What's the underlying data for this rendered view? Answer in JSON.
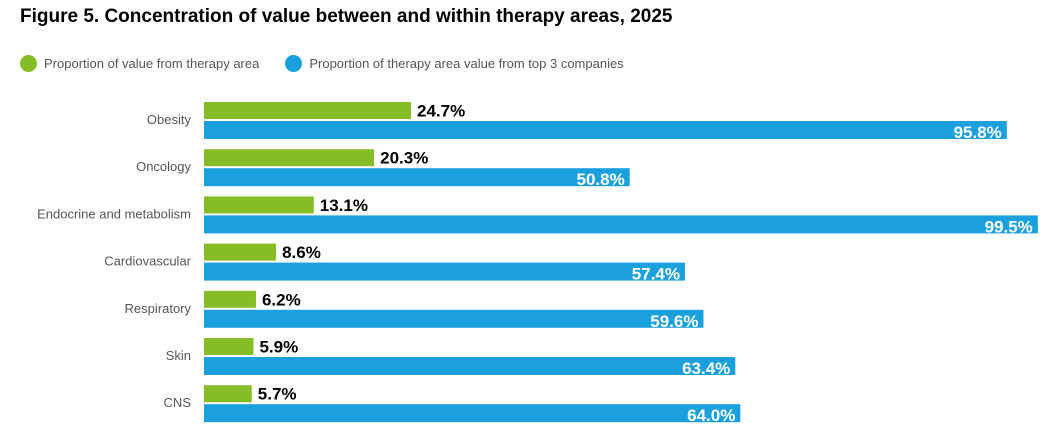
{
  "colors": {
    "green": "#86bc25",
    "blue": "#1aa0dd",
    "text": "#000000",
    "label": "#555555",
    "white": "#ffffff"
  },
  "chart_data": {
    "type": "bar",
    "orientation": "horizontal",
    "title": "Figure 5. Concentration of value between and within therapy areas, 2025",
    "categories": [
      "Obesity",
      "Oncology",
      "Endocrine and metabolism",
      "Cardiovascular",
      "Respiratory",
      "Skin",
      "CNS"
    ],
    "series": [
      {
        "name": "Proportion of value from therapy area",
        "color": "#86bc25",
        "values": [
          24.7,
          20.3,
          13.1,
          8.6,
          6.2,
          5.9,
          5.7
        ],
        "labels": [
          "24.7%",
          "20.3%",
          "13.1%",
          "8.6%",
          "6.2%",
          "5.9%",
          "5.7%"
        ]
      },
      {
        "name": "Proportion of therapy area value from top 3 companies",
        "color": "#1aa0dd",
        "values": [
          95.8,
          50.8,
          99.5,
          57.4,
          59.6,
          63.4,
          64.0
        ],
        "labels": [
          "95.8%",
          "50.8%",
          "99.5%",
          "57.4%",
          "59.6%",
          "63.4%",
          "64.0%"
        ]
      }
    ],
    "xlim": [
      0,
      100
    ],
    "grid": false,
    "legend_position": "top-left"
  }
}
